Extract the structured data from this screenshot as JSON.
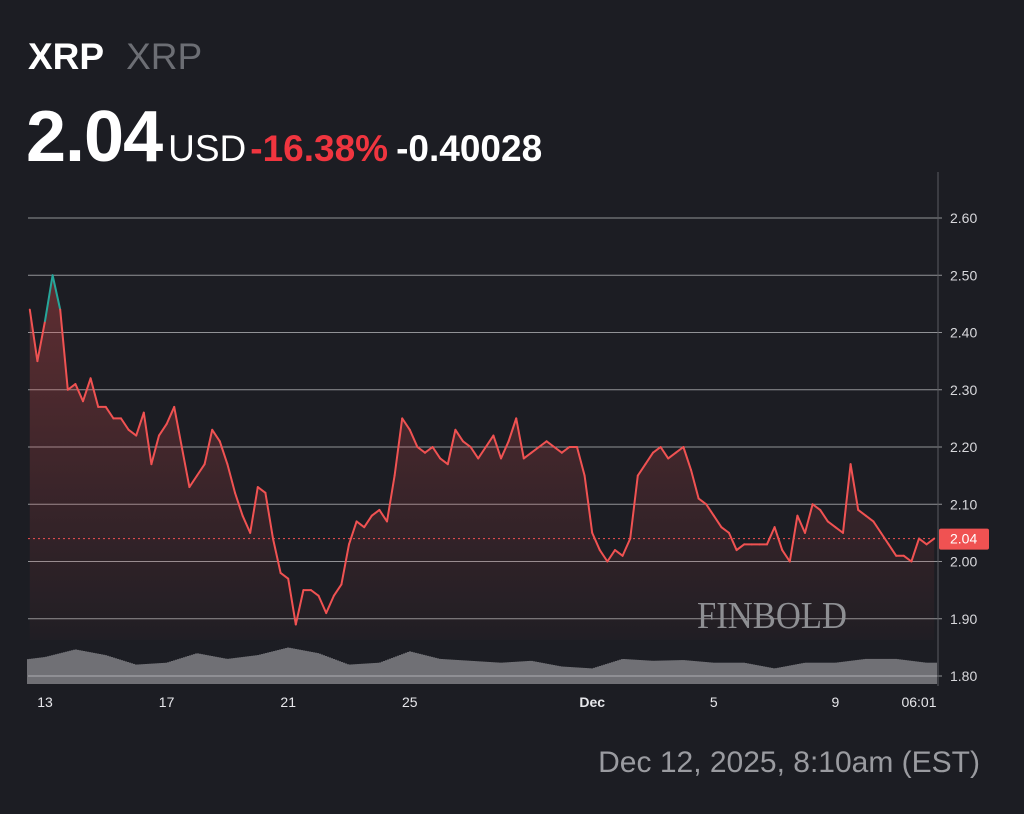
{
  "header": {
    "symbol": "XRP",
    "name": "XRP",
    "price": "2.04",
    "currency": "USD",
    "change_percent": "-16.38%",
    "change_abs": "-0.40028"
  },
  "timestamp": "Dec 12, 2025, 8:10am (EST)",
  "watermark": "FINBOLD",
  "colors": {
    "background": "#1c1d23",
    "down": "#f05252",
    "up": "#26a69a",
    "change_percent": "#f0353f",
    "grid": "#b8b9bd"
  },
  "chart_data": {
    "type": "line",
    "ylim": [
      1.8,
      2.68
    ],
    "y_axis_position": "right",
    "grid": true,
    "yticks": [
      "1.80",
      "1.90",
      "2.00",
      "2.10",
      "2.20",
      "2.30",
      "2.40",
      "2.50",
      "2.60"
    ],
    "xticks": [
      {
        "label": "13",
        "at": "2025-11-13T00:00"
      },
      {
        "label": "17",
        "at": "2025-11-17T00:00"
      },
      {
        "label": "21",
        "at": "2025-11-21T00:00"
      },
      {
        "label": "25",
        "at": "2025-11-25T00:00"
      },
      {
        "label": "Dec",
        "at": "2025-12-01T00:00",
        "bold": true
      },
      {
        "label": "5",
        "at": "2025-12-05T00:00"
      },
      {
        "label": "9",
        "at": "2025-12-09T00:00"
      },
      {
        "label": "06:01",
        "at": "2025-12-11T18:00"
      }
    ],
    "last_price_label": "2.04",
    "last_price": 2.04,
    "series": [
      {
        "x": [
          "2025-11-12T12:00",
          "2025-11-12T18:00",
          "2025-11-13T00:00",
          "2025-11-13T06:00",
          "2025-11-13T12:00",
          "2025-11-13T18:00",
          "2025-11-14T00:00",
          "2025-11-14T06:00",
          "2025-11-14T12:00",
          "2025-11-14T18:00",
          "2025-11-15T00:00",
          "2025-11-15T06:00",
          "2025-11-15T12:00",
          "2025-11-15T18:00",
          "2025-11-16T00:00",
          "2025-11-16T06:00",
          "2025-11-16T12:00",
          "2025-11-16T18:00",
          "2025-11-17T00:00",
          "2025-11-17T06:00",
          "2025-11-17T12:00",
          "2025-11-17T18:00",
          "2025-11-18T00:00",
          "2025-11-18T06:00",
          "2025-11-18T12:00",
          "2025-11-18T18:00",
          "2025-11-19T00:00",
          "2025-11-19T06:00",
          "2025-11-19T12:00",
          "2025-11-19T18:00",
          "2025-11-20T00:00",
          "2025-11-20T06:00",
          "2025-11-20T12:00",
          "2025-11-20T18:00",
          "2025-11-21T00:00",
          "2025-11-21T06:00",
          "2025-11-21T12:00",
          "2025-11-21T18:00",
          "2025-11-22T00:00",
          "2025-11-22T06:00",
          "2025-11-22T12:00",
          "2025-11-22T18:00",
          "2025-11-23T00:00",
          "2025-11-23T06:00",
          "2025-11-23T12:00",
          "2025-11-23T18:00",
          "2025-11-24T00:00",
          "2025-11-24T06:00",
          "2025-11-24T12:00",
          "2025-11-24T18:00",
          "2025-11-25T00:00",
          "2025-11-25T06:00",
          "2025-11-25T12:00",
          "2025-11-25T18:00",
          "2025-11-26T00:00",
          "2025-11-26T06:00",
          "2025-11-26T12:00",
          "2025-11-26T18:00",
          "2025-11-27T00:00",
          "2025-11-27T06:00",
          "2025-11-27T12:00",
          "2025-11-27T18:00",
          "2025-11-28T00:00",
          "2025-11-28T06:00",
          "2025-11-28T12:00",
          "2025-11-28T18:00",
          "2025-11-29T00:00",
          "2025-11-29T06:00",
          "2025-11-29T12:00",
          "2025-11-29T18:00",
          "2025-11-30T00:00",
          "2025-11-30T06:00",
          "2025-11-30T12:00",
          "2025-11-30T18:00",
          "2025-12-01T00:00",
          "2025-12-01T06:00",
          "2025-12-01T12:00",
          "2025-12-01T18:00",
          "2025-12-02T00:00",
          "2025-12-02T06:00",
          "2025-12-02T12:00",
          "2025-12-02T18:00",
          "2025-12-03T00:00",
          "2025-12-03T06:00",
          "2025-12-03T12:00",
          "2025-12-03T18:00",
          "2025-12-04T00:00",
          "2025-12-04T06:00",
          "2025-12-04T12:00",
          "2025-12-04T18:00",
          "2025-12-05T00:00",
          "2025-12-05T06:00",
          "2025-12-05T12:00",
          "2025-12-05T18:00",
          "2025-12-06T00:00",
          "2025-12-06T06:00",
          "2025-12-06T12:00",
          "2025-12-06T18:00",
          "2025-12-07T00:00",
          "2025-12-07T06:00",
          "2025-12-07T12:00",
          "2025-12-07T18:00",
          "2025-12-08T00:00",
          "2025-12-08T06:00",
          "2025-12-08T12:00",
          "2025-12-08T18:00",
          "2025-12-09T00:00",
          "2025-12-09T06:00",
          "2025-12-09T12:00",
          "2025-12-09T18:00",
          "2025-12-10T00:00",
          "2025-12-10T06:00",
          "2025-12-10T12:00",
          "2025-12-10T18:00",
          "2025-12-11T00:00",
          "2025-12-11T06:00",
          "2025-12-11T12:00",
          "2025-12-11T18:00",
          "2025-12-12T00:00",
          "2025-12-12T06:00"
        ],
        "values": [
          2.44,
          2.35,
          2.42,
          2.5,
          2.44,
          2.3,
          2.31,
          2.28,
          2.32,
          2.27,
          2.27,
          2.25,
          2.25,
          2.23,
          2.22,
          2.26,
          2.17,
          2.22,
          2.24,
          2.27,
          2.2,
          2.13,
          2.15,
          2.17,
          2.23,
          2.21,
          2.17,
          2.12,
          2.08,
          2.05,
          2.13,
          2.12,
          2.04,
          1.98,
          1.97,
          1.89,
          1.95,
          1.95,
          1.94,
          1.91,
          1.94,
          1.96,
          2.03,
          2.07,
          2.06,
          2.08,
          2.09,
          2.07,
          2.15,
          2.25,
          2.23,
          2.2,
          2.19,
          2.2,
          2.18,
          2.17,
          2.23,
          2.21,
          2.2,
          2.18,
          2.2,
          2.22,
          2.18,
          2.21,
          2.25,
          2.18,
          2.19,
          2.2,
          2.21,
          2.2,
          2.19,
          2.2,
          2.2,
          2.15,
          2.05,
          2.02,
          2.0,
          2.02,
          2.01,
          2.04,
          2.15,
          2.17,
          2.19,
          2.2,
          2.18,
          2.19,
          2.2,
          2.16,
          2.11,
          2.1,
          2.08,
          2.06,
          2.05,
          2.02,
          2.03,
          2.03,
          2.03,
          2.03,
          2.06,
          2.02,
          2.0,
          2.08,
          2.05,
          2.1,
          2.09,
          2.07,
          2.06,
          2.05,
          2.17,
          2.09,
          2.08,
          2.07,
          2.05,
          2.03,
          2.01,
          2.01,
          2.0,
          2.04,
          2.03,
          2.04
        ]
      }
    ],
    "volume_relative": {
      "x": [
        "2025-11-12",
        "2025-11-13",
        "2025-11-14",
        "2025-11-15",
        "2025-11-16",
        "2025-11-17",
        "2025-11-18",
        "2025-11-19",
        "2025-11-20",
        "2025-11-21",
        "2025-11-22",
        "2025-11-23",
        "2025-11-24",
        "2025-11-25",
        "2025-11-26",
        "2025-11-27",
        "2025-11-28",
        "2025-11-29",
        "2025-11-30",
        "2025-12-01",
        "2025-12-02",
        "2025-12-03",
        "2025-12-04",
        "2025-12-05",
        "2025-12-06",
        "2025-12-07",
        "2025-12-08",
        "2025-12-09",
        "2025-12-10",
        "2025-12-11",
        "2025-12-12"
      ],
      "values": [
        0.4,
        0.5,
        0.7,
        0.55,
        0.3,
        0.35,
        0.6,
        0.45,
        0.55,
        0.75,
        0.6,
        0.3,
        0.35,
        0.65,
        0.45,
        0.4,
        0.35,
        0.4,
        0.25,
        0.2,
        0.45,
        0.4,
        0.42,
        0.35,
        0.35,
        0.2,
        0.35,
        0.35,
        0.45,
        0.45,
        0.35
      ]
    }
  }
}
